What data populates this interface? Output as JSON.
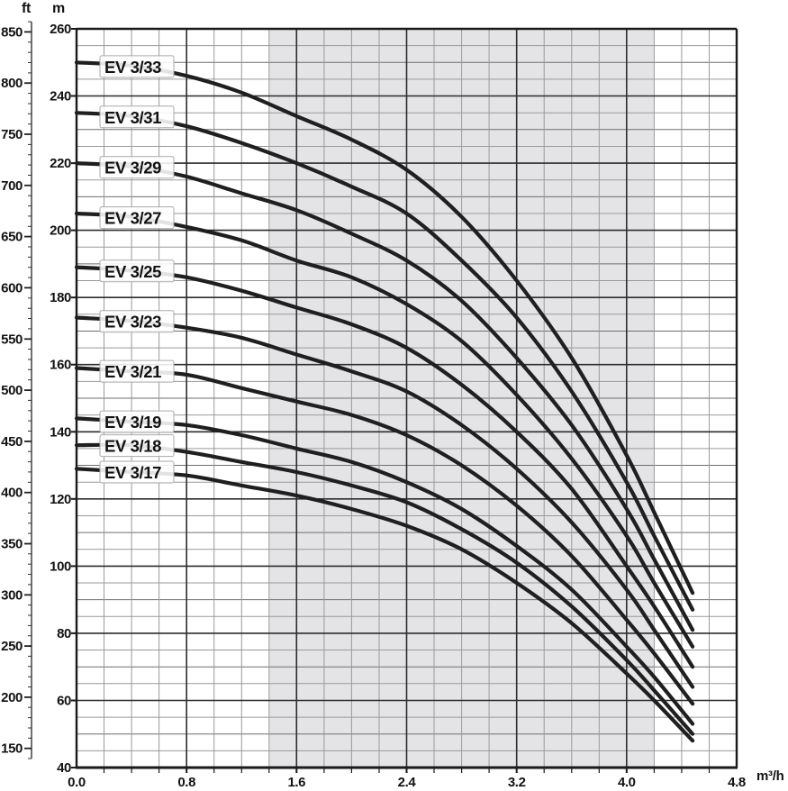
{
  "units": {
    "flow": "m³/h",
    "head_primary": "m",
    "head_secondary": "ft"
  },
  "axes": {
    "x_ticks": [
      "0.0",
      "0.8",
      "1.6",
      "2.4",
      "3.2",
      "4.0",
      "4.8"
    ],
    "x_minor_step": 0.2,
    "y_m_ticks": [
      260,
      240,
      220,
      200,
      180,
      160,
      140,
      120,
      100,
      80,
      60,
      40
    ],
    "y_m_minor_step": 5,
    "y_ft_ticks": [
      850,
      800,
      750,
      700,
      650,
      600,
      550,
      500,
      450,
      400,
      350,
      300,
      250,
      200,
      150
    ],
    "y_ft_minor_step": 10,
    "y_ft_minor_range": [
      140,
      860
    ]
  },
  "chart_data": {
    "type": "line",
    "title": "",
    "xlabel": "m³/h",
    "ylabel": "m",
    "ylabel_secondary": "ft",
    "xlim": [
      0,
      4.8
    ],
    "ylim": [
      40,
      260
    ],
    "ylim_ft": [
      150,
      850
    ],
    "grid": {
      "x_minor": 0.2,
      "x_major": 0.8,
      "y_minor": 5,
      "y_major": 20,
      "on": true
    },
    "shaded_band_x": [
      1.4,
      4.2
    ],
    "label_anchor_x": 0.45,
    "legend_position": "labels-on-curves",
    "x": [
      0,
      0.4,
      0.8,
      1.2,
      1.6,
      2.0,
      2.4,
      2.8,
      3.2,
      3.6,
      4.0,
      4.2,
      4.48
    ],
    "series": [
      {
        "name": "EV 3/33",
        "stages": 33,
        "values": [
          250,
          249,
          246,
          241,
          234,
          227,
          218,
          204,
          185,
          162,
          133,
          116,
          92
        ]
      },
      {
        "name": "EV 3/31",
        "stages": 31,
        "values": [
          235,
          234,
          231,
          226,
          220,
          213,
          205,
          191,
          174,
          152,
          125,
          109,
          87
        ]
      },
      {
        "name": "EV 3/29",
        "stages": 29,
        "values": [
          220,
          219,
          216,
          211,
          206,
          199,
          191,
          179,
          162,
          142,
          117,
          102,
          81
        ]
      },
      {
        "name": "EV 3/27",
        "stages": 27,
        "values": [
          205,
          204,
          201,
          197,
          191,
          186,
          178,
          167,
          151,
          132,
          109,
          95,
          76
        ]
      },
      {
        "name": "EV 3/25",
        "stages": 25,
        "values": [
          189,
          188,
          186,
          182,
          177,
          172,
          165,
          154,
          140,
          123,
          100,
          88,
          70
        ]
      },
      {
        "name": "EV 3/23",
        "stages": 23,
        "values": [
          174,
          173,
          171,
          168,
          163,
          158,
          152,
          142,
          129,
          113,
          93,
          81,
          64
        ]
      },
      {
        "name": "EV 3/21",
        "stages": 21,
        "values": [
          159,
          158,
          157,
          153,
          149,
          145,
          139,
          130,
          118,
          103,
          84,
          74,
          59
        ]
      },
      {
        "name": "EV 3/19",
        "stages": 19,
        "values": [
          144,
          143,
          142,
          139,
          135,
          131,
          125,
          117,
          106,
          93,
          76,
          67,
          53
        ]
      },
      {
        "name": "EV 3/18",
        "stages": 18,
        "values": [
          136,
          136,
          134,
          131,
          128,
          124,
          119,
          111,
          101,
          88,
          72,
          63,
          50
        ]
      },
      {
        "name": "EV 3/17",
        "stages": 17,
        "values": [
          129,
          128,
          127,
          124,
          121,
          117,
          112,
          105,
          95,
          83,
          68,
          60,
          48
        ]
      }
    ],
    "colors": {
      "curve": "#1f1f1f",
      "band": "#e4e4e6",
      "grid_minor": "#9a9a9a",
      "grid_mid": "#6e6e6e",
      "grid_major": "#2d2d2d",
      "frame": "#1a1a1a",
      "label_box_border": "#aaaaaa",
      "label_box_fill": "rgba(255,255,255,0.88)",
      "text": "#121212"
    }
  }
}
